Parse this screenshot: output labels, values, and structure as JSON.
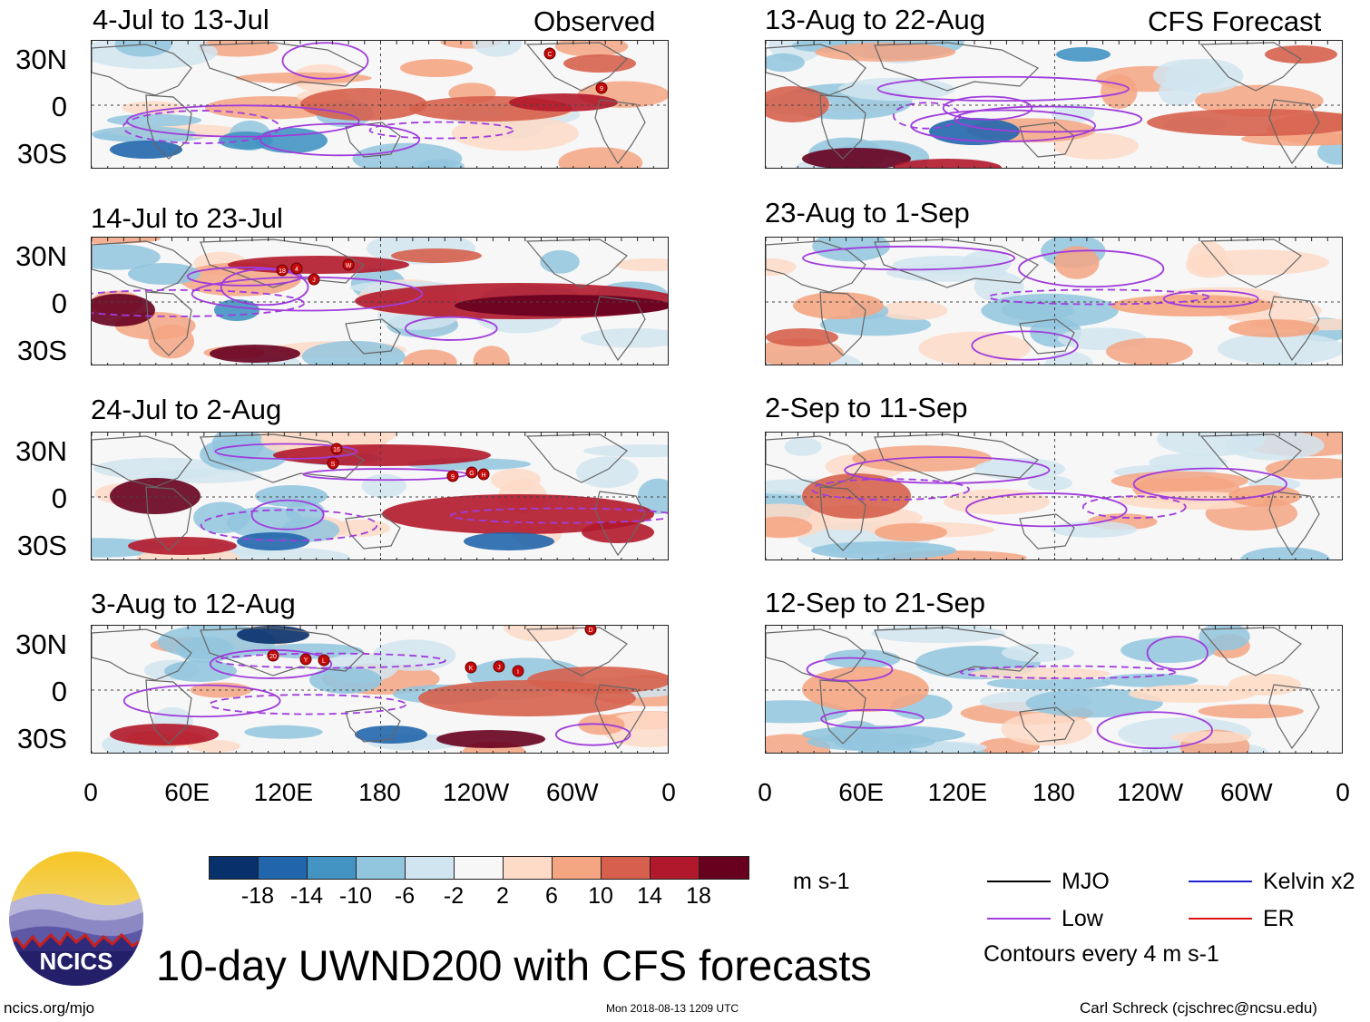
{
  "headers": {
    "left": "Observed",
    "right": "CFS Forecast"
  },
  "observed_panels": [
    {
      "title": "4-Jul to 13-Jul"
    },
    {
      "title": "14-Jul to 23-Jul"
    },
    {
      "title": "24-Jul to 2-Aug"
    },
    {
      "title": "3-Aug to 12-Aug"
    }
  ],
  "forecast_panels": [
    {
      "title": "13-Aug to 22-Aug"
    },
    {
      "title": "23-Aug to 1-Sep"
    },
    {
      "title": "2-Sep to 11-Sep"
    },
    {
      "title": "12-Sep to 21-Sep"
    }
  ],
  "lat_labels": [
    "30N",
    "0",
    "30S"
  ],
  "lon_labels": [
    "0",
    "60E",
    "120E",
    "180",
    "120W",
    "60W",
    "0"
  ],
  "colorbar": {
    "colors": [
      "#08306b",
      "#2166ac",
      "#4393c3",
      "#92c5de",
      "#d1e5f0",
      "#f7f7f7",
      "#fddbc7",
      "#f4a582",
      "#d6604d",
      "#b2182b",
      "#67001f"
    ],
    "ticks": [
      "-18",
      "-14",
      "-10",
      "-6",
      "-2",
      "2",
      "6",
      "10",
      "14",
      "18"
    ],
    "units": "m s-1"
  },
  "legend": {
    "mjo": {
      "label": "MJO",
      "color": "#000000"
    },
    "kelvin": {
      "label": "Kelvin x2",
      "color": "#2222cc"
    },
    "low": {
      "label": "Low",
      "color": "#a03cdc"
    },
    "er": {
      "label": "ER",
      "color": "#dd1111"
    },
    "contours_note": "Contours every 4 m s-1"
  },
  "logo": {
    "text": "NCICS"
  },
  "main_title": "10-day UWND200 with CFS forecasts",
  "footer": {
    "left": "ncics.org/mjo",
    "center": "Mon 2018-08-13 1209 UTC",
    "right": "Carl Schreck (cjschrec@ncsu.edu)"
  },
  "storm_markers": [
    [
      "C",
      "9"
    ],
    [
      "18",
      "4",
      "J",
      "W"
    ],
    [
      "16",
      "S",
      "9",
      "G",
      "H"
    ],
    [
      "20",
      "Y",
      "L",
      "K",
      "J",
      "I",
      "D"
    ]
  ]
}
